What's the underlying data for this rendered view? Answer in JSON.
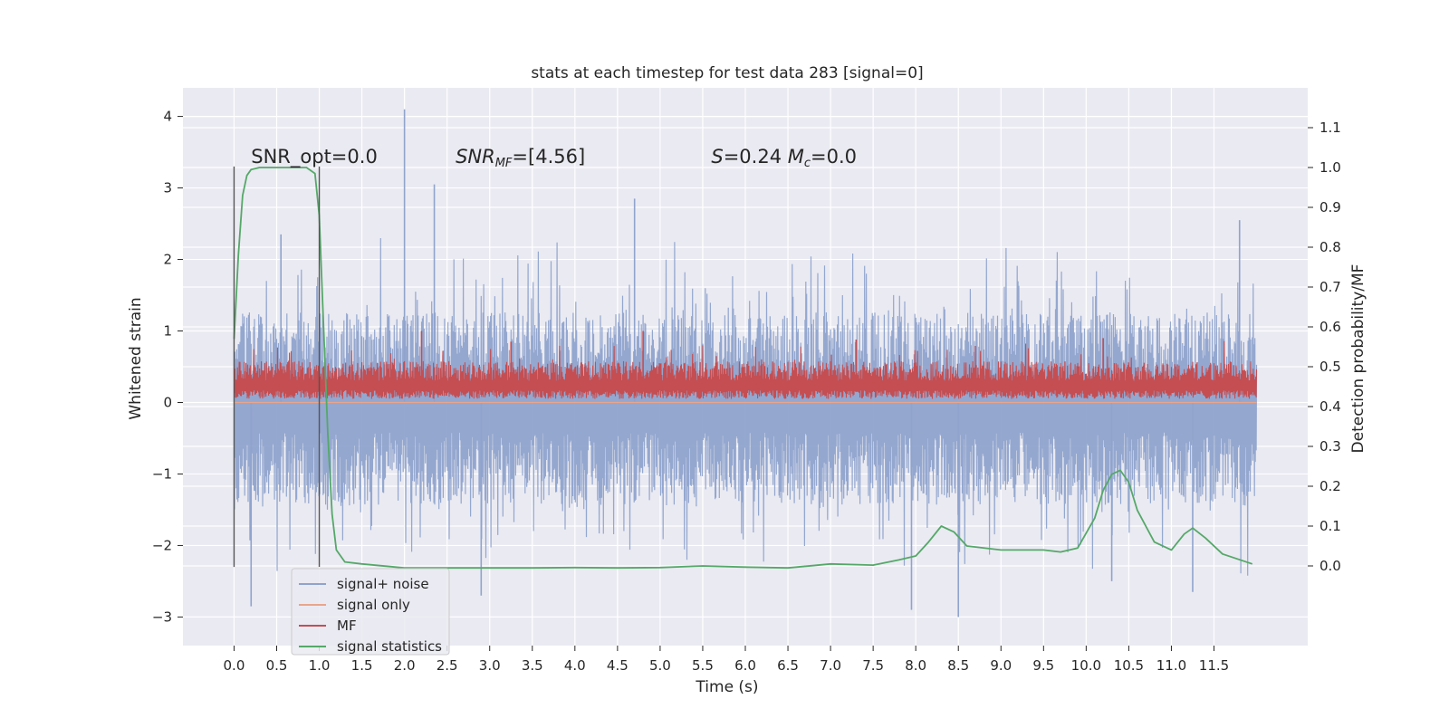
{
  "chart_data": {
    "type": "line",
    "title": "stats at each timestep for test data 283 [signal=0]",
    "xlabel": "Time (s)",
    "ylabel": "Whitened strain",
    "ylabel_right": "Detection probability/MF",
    "xlim": [
      -0.6,
      12.6
    ],
    "ylim": [
      -3.4,
      4.4
    ],
    "ylim_right": [
      -0.2,
      1.2
    ],
    "x_ticks": [
      0.0,
      0.5,
      1.0,
      1.5,
      2.0,
      2.5,
      3.0,
      3.5,
      4.0,
      4.5,
      5.0,
      5.5,
      6.0,
      6.5,
      7.0,
      7.5,
      8.0,
      8.5,
      9.0,
      9.5,
      10.0,
      10.5,
      11.0,
      11.5
    ],
    "x_tick_labels": [
      "0.0",
      "0.5",
      "1.0",
      "1.5",
      "2.0",
      "2.5",
      "3.0",
      "3.5",
      "4.0",
      "4.5",
      "5.0",
      "5.5",
      "6.0",
      "6.5",
      "7.0",
      "7.5",
      "8.0",
      "8.5",
      "9.0",
      "9.5",
      "10.0",
      "10.5",
      "11.0",
      "11.5"
    ],
    "y_ticks": [
      -3,
      -2,
      -1,
      0,
      1,
      2,
      3,
      4
    ],
    "y_tick_labels": [
      "−3",
      "−2",
      "−1",
      "0",
      "1",
      "2",
      "3",
      "4"
    ],
    "y_right_ticks": [
      0.0,
      0.1,
      0.2,
      0.3,
      0.4,
      0.5,
      0.6,
      0.7,
      0.8,
      0.9,
      1.0,
      1.1
    ],
    "y_right_tick_labels": [
      "0.0",
      "0.1",
      "0.2",
      "0.3",
      "0.4",
      "0.5",
      "0.6",
      "0.7",
      "0.8",
      "0.9",
      "1.0",
      "1.1"
    ],
    "grid": true,
    "legend_position": "lower-left",
    "annotations": [
      {
        "text": "SNR_opt=0.0",
        "x": 0.2,
        "y": 3.35
      },
      {
        "text": "SNR_MF=[4.56]",
        "x": 2.6,
        "y": 3.35
      },
      {
        "text": "S=0.24   M_c=0.0",
        "x": 5.6,
        "y": 3.35
      }
    ],
    "vertical_markers": [
      {
        "x": 0.0,
        "y_range": [
          -2.3,
          3.3
        ]
      },
      {
        "x": 1.0,
        "y_range": [
          -2.3,
          3.3
        ]
      }
    ],
    "series": [
      {
        "name": "signal+ noise",
        "axis": "left",
        "color": "#8fa3cc",
        "x_range": [
          0.0,
          12.0
        ],
        "envelope_upper_typical": 1.05,
        "envelope_lower_typical": -1.2,
        "notable_peaks": [
          [
            2.0,
            4.1
          ],
          [
            2.35,
            3.05
          ],
          [
            4.7,
            2.85
          ],
          [
            0.55,
            2.35
          ],
          [
            11.8,
            2.55
          ]
        ],
        "notable_troughs": [
          [
            8.5,
            -3.0
          ],
          [
            7.95,
            -2.9
          ],
          [
            0.2,
            -2.85
          ],
          [
            2.9,
            -2.7
          ],
          [
            11.25,
            -2.65
          ],
          [
            10.3,
            -2.5
          ]
        ]
      },
      {
        "name": "signal only",
        "axis": "left",
        "color": "#e8a58c",
        "x": [
          0.0,
          12.0
        ],
        "y": [
          0.0,
          0.0
        ]
      },
      {
        "name": "MF",
        "axis": "left",
        "color": "#c44e52",
        "x_range": [
          0.0,
          12.0
        ],
        "band_low": 0.05,
        "band_high": 0.55,
        "notable_peaks": [
          [
            2.2,
            1.0
          ],
          [
            4.8,
            1.0
          ],
          [
            10.2,
            0.9
          ],
          [
            7.3,
            0.88
          ],
          [
            3.25,
            0.85
          ]
        ]
      },
      {
        "name": "signal statistics",
        "axis": "right",
        "color": "#55a868",
        "x": [
          0.0,
          0.05,
          0.1,
          0.15,
          0.2,
          0.3,
          0.5,
          0.7,
          0.85,
          0.95,
          1.0,
          1.05,
          1.1,
          1.15,
          1.2,
          1.3,
          1.5,
          2.0,
          2.5,
          3.0,
          3.5,
          4.0,
          4.5,
          5.0,
          5.5,
          6.0,
          6.5,
          7.0,
          7.5,
          7.8,
          8.0,
          8.15,
          8.3,
          8.45,
          8.6,
          9.0,
          9.5,
          9.7,
          9.9,
          10.1,
          10.2,
          10.3,
          10.4,
          10.5,
          10.6,
          10.8,
          11.0,
          11.15,
          11.25,
          11.4,
          11.6,
          11.95
        ],
        "y": [
          0.57,
          0.78,
          0.93,
          0.98,
          0.995,
          1.0,
          1.0,
          1.0,
          1.0,
          0.985,
          0.88,
          0.6,
          0.33,
          0.13,
          0.04,
          0.01,
          0.005,
          -0.005,
          -0.005,
          -0.005,
          -0.005,
          -0.004,
          -0.005,
          -0.004,
          0.0,
          -0.003,
          -0.005,
          0.005,
          0.002,
          0.015,
          0.025,
          0.06,
          0.1,
          0.085,
          0.05,
          0.04,
          0.04,
          0.035,
          0.045,
          0.12,
          0.19,
          0.23,
          0.24,
          0.21,
          0.14,
          0.06,
          0.04,
          0.08,
          0.095,
          0.07,
          0.03,
          0.005
        ]
      }
    ]
  }
}
